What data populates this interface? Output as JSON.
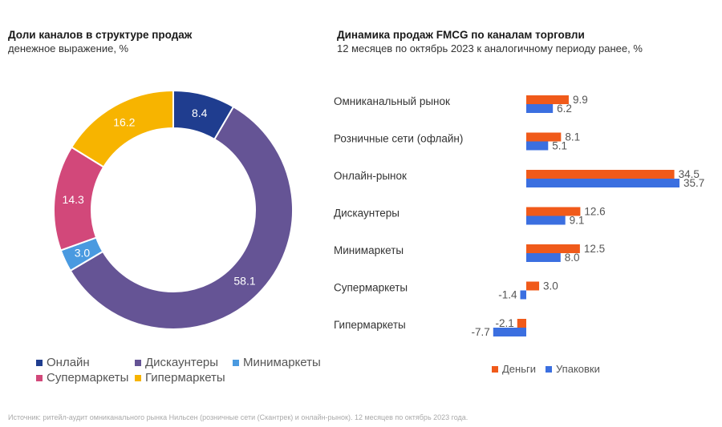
{
  "left_title": "Доли каналов в структуре продаж",
  "left_subtitle": "денежное выражение, %",
  "right_title": "Динамика продаж FMCG по каналам торговли",
  "right_subtitle": "12 месяцев по октябрь 2023 к аналогичному периоду ранее, %",
  "source": "Источник: ритейл-аудит омниканального рынка Нильсен (розничные сети (Скантрек) и онлайн-рынок). 12 месяцев по октябрь 2023 года.",
  "chart_data": [
    {
      "type": "pie",
      "donut": true,
      "title": "Доли каналов в структуре продаж",
      "subtitle": "денежное выражение, %",
      "slices": [
        {
          "name": "Онлайн",
          "value": 8.4,
          "label": "8.4",
          "color": "#1f3d8f"
        },
        {
          "name": "Дискаунтеры",
          "value": 58.1,
          "label": "58.1",
          "color": "#655495"
        },
        {
          "name": "Минимаркеты",
          "value": 3.0,
          "label": "3.0",
          "color": "#4a9ae0"
        },
        {
          "name": "Супермаркеты",
          "value": 14.3,
          "label": "14.3",
          "color": "#d2487a"
        },
        {
          "name": "Гипермаркеты",
          "value": 16.2,
          "label": "16.2",
          "color": "#f7b400"
        }
      ],
      "legend_placement": "bottom"
    },
    {
      "type": "bar",
      "orientation": "horizontal",
      "title": "Динамика продаж FMCG по каналам торговли",
      "subtitle": "12 месяцев по октябрь 2023 к аналогичному периоду ранее, %",
      "categories": [
        "Омниканальный рынок",
        "Розничные сети (офлайн)",
        "Онлайн-рынок",
        "Дискаунтеры",
        "Минимаркеты",
        "Супермаркеты",
        "Гипермаркеты"
      ],
      "series": [
        {
          "name": "Деньги",
          "color": "#f05a1a",
          "values": [
            9.9,
            8.1,
            34.5,
            12.6,
            12.5,
            3.0,
            -2.1
          ],
          "labels": [
            "9.9",
            "8.1",
            "34.5",
            "12.6",
            "12.5",
            "3.0",
            "-2.1"
          ]
        },
        {
          "name": "Упаковки",
          "color": "#3b6fe0",
          "values": [
            6.2,
            5.1,
            35.7,
            9.1,
            8.0,
            -1.4,
            -7.7
          ],
          "labels": [
            "6.2",
            "5.1",
            "35.7",
            "9.1",
            "8.0",
            "-1.4",
            "-7.7"
          ]
        }
      ],
      "legend_placement": "bottom",
      "grid": false
    }
  ]
}
